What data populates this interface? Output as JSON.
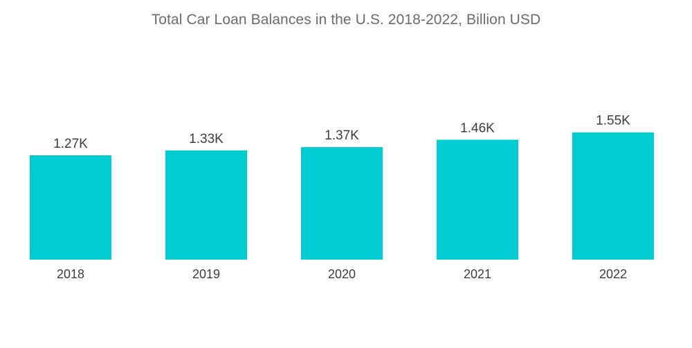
{
  "chart_data": {
    "type": "bar",
    "title": "Total Car Loan Balances in the U.S. 2018-2022, Billion USD",
    "categories": [
      "2018",
      "2019",
      "2020",
      "2021",
      "2022"
    ],
    "values": [
      1270,
      1330,
      1370,
      1460,
      1550
    ],
    "data_labels": [
      "1.27K",
      "1.33K",
      "1.37K",
      "1.46K",
      "1.55K"
    ],
    "xlabel": "",
    "ylabel": "",
    "ylim": [
      0,
      1750
    ],
    "grid": false,
    "legend": "none",
    "bar_color": "#00cdd2"
  }
}
